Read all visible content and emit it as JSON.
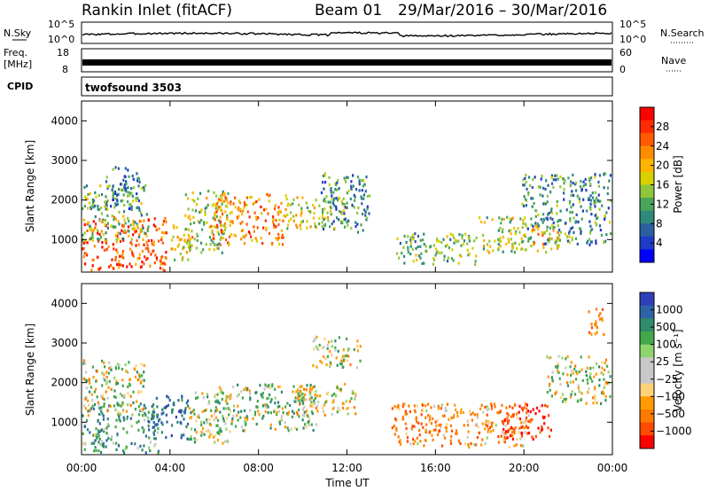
{
  "header": {
    "title": "Rankin Inlet (fitACF)",
    "beam": "Beam 01",
    "date_range": "29/Mar/2016 – 30/Mar/2016"
  },
  "panels": {
    "nsky": {
      "label": "N.Sky",
      "right_label": "N.Search",
      "ticks_left": [
        "10^5",
        "10^0"
      ],
      "ticks_right": [
        "10^5",
        "10^0"
      ]
    },
    "freq": {
      "label_top": "Freq.",
      "label_bottom": "[MHz]",
      "right_label": "Nave",
      "ticks_left": [
        "18",
        "8"
      ],
      "ticks_right": [
        "60",
        "0"
      ]
    },
    "cpid": {
      "label": "CPID",
      "value": "twofsound 3503"
    }
  },
  "axes": {
    "y_label": "Slant Range [km]",
    "y_ticks": [
      "4000",
      "3000",
      "2000",
      "1000"
    ],
    "x_label": "Time UT",
    "x_ticks": [
      "00:00",
      "04:00",
      "08:00",
      "12:00",
      "16:00",
      "20:00",
      "00:00"
    ]
  },
  "colorbars": {
    "power": {
      "label": "Power [dB]",
      "ticks": [
        "28",
        "24",
        "20",
        "16",
        "12",
        "8",
        "4"
      ],
      "colors": [
        "#ff0000",
        "#ff2a00",
        "#ff5a00",
        "#ff8c00",
        "#ffb400",
        "#d8d000",
        "#8ec73c",
        "#49a55a",
        "#2e8a7a",
        "#2b5fa0",
        "#1e3cc8",
        "#0000ff"
      ]
    },
    "velocity": {
      "label": "Velocity [m s⁻¹]",
      "ticks": [
        "1000",
        "500",
        "100",
        "25",
        "−25",
        "−100",
        "−500",
        "−1000"
      ],
      "colors": [
        "#2f3fb8",
        "#2f63a8",
        "#2e8b6b",
        "#44a84a",
        "#8ed36e",
        "#c8c8c8",
        "#c8c8c8",
        "#ffd27a",
        "#ff9a00",
        "#ff7a00",
        "#ff4a00",
        "#ff0000"
      ]
    }
  },
  "chart_data": [
    {
      "type": "heatmap",
      "name": "power",
      "ylabel": "Slant Range [km]",
      "xlabel": "Time UT",
      "x_range_hours": [
        0,
        24
      ],
      "y_range_km": [
        180,
        4500
      ],
      "regions": [
        {
          "t": [
            0.0,
            3.8
          ],
          "r": [
            250,
            1600
          ],
          "level": 26
        },
        {
          "t": [
            0.0,
            3.0
          ],
          "r": [
            1000,
            2400
          ],
          "level": 12
        },
        {
          "t": [
            1.0,
            2.6
          ],
          "r": [
            1800,
            2900
          ],
          "level": 8
        },
        {
          "t": [
            4.0,
            5.0
          ],
          "r": [
            500,
            1400
          ],
          "level": 18
        },
        {
          "t": [
            4.6,
            6.6
          ],
          "r": [
            700,
            2300
          ],
          "level": 14
        },
        {
          "t": [
            5.8,
            9.2
          ],
          "r": [
            900,
            2200
          ],
          "level": 22
        },
        {
          "t": [
            9.2,
            12.0
          ],
          "r": [
            1300,
            2100
          ],
          "level": 16
        },
        {
          "t": [
            10.8,
            13.0
          ],
          "r": [
            1200,
            2700
          ],
          "level": 9
        },
        {
          "t": [
            14.2,
            17.8
          ],
          "r": [
            400,
            1200
          ],
          "level": 12
        },
        {
          "t": [
            17.8,
            20.2
          ],
          "r": [
            700,
            1600
          ],
          "level": 14
        },
        {
          "t": [
            19.8,
            23.9
          ],
          "r": [
            900,
            2700
          ],
          "level": 9
        },
        {
          "t": [
            20.2,
            21.6
          ],
          "r": [
            700,
            1400
          ],
          "level": 18
        }
      ]
    },
    {
      "type": "heatmap",
      "name": "velocity",
      "ylabel": "Slant Range [km]",
      "xlabel": "Time UT",
      "x_range_hours": [
        0,
        24
      ],
      "y_range_km": [
        180,
        4500
      ],
      "regions": [
        {
          "t": [
            0.0,
            3.5
          ],
          "r": [
            250,
            1500
          ],
          "level": 300
        },
        {
          "t": [
            0.0,
            2.8
          ],
          "r": [
            1200,
            2600
          ],
          "level": 0
        },
        {
          "t": [
            3.0,
            4.8
          ],
          "r": [
            600,
            1700
          ],
          "level": 600
        },
        {
          "t": [
            4.8,
            6.8
          ],
          "r": [
            500,
            1800
          ],
          "level": 60
        },
        {
          "t": [
            6.0,
            10.6
          ],
          "r": [
            800,
            2000
          ],
          "level": 150
        },
        {
          "t": [
            9.6,
            12.4
          ],
          "r": [
            1200,
            2000
          ],
          "level": -120
        },
        {
          "t": [
            10.4,
            12.6
          ],
          "r": [
            2400,
            3200
          ],
          "level": 0
        },
        {
          "t": [
            14.0,
            20.2
          ],
          "r": [
            400,
            1500
          ],
          "level": -300
        },
        {
          "t": [
            18.8,
            21.2
          ],
          "r": [
            600,
            1500
          ],
          "level": -800
        },
        {
          "t": [
            21.0,
            23.9
          ],
          "r": [
            1500,
            2700
          ],
          "level": 0
        },
        {
          "t": [
            22.8,
            23.6
          ],
          "r": [
            3200,
            3900
          ],
          "level": -400
        }
      ]
    }
  ]
}
